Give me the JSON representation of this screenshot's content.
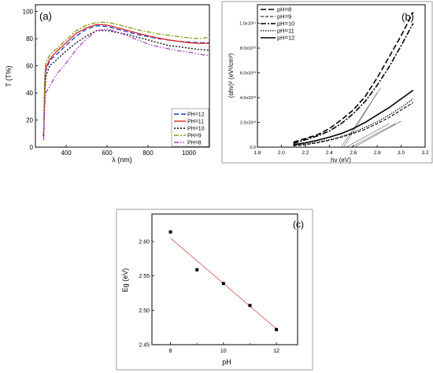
{
  "chart_data": [
    {
      "panel_label": "(a)",
      "type": "line",
      "xlabel": "λ (nm)",
      "ylabel": "T (T%)",
      "xlim": [
        250,
        1100
      ],
      "ylim": [
        0,
        105
      ],
      "x_ticks": [
        "400",
        "600",
        "800",
        "1000"
      ],
      "y_ticks": [
        "0",
        "20",
        "40",
        "60",
        "80",
        "100"
      ],
      "legend_position": "bottom-right",
      "series": [
        {
          "name": "PH=12",
          "color": "#1f3fd6",
          "dash": "6,3",
          "x": [
            290,
            295,
            300,
            320,
            350,
            400,
            450,
            500,
            550,
            600,
            650,
            700,
            750,
            800,
            850,
            900,
            950,
            1000,
            1050,
            1100
          ],
          "y": [
            8,
            40,
            56,
            64,
            68,
            75,
            82,
            87,
            89.5,
            89,
            87,
            85,
            83,
            81.5,
            80,
            79,
            78,
            77.5,
            77,
            77
          ]
        },
        {
          "name": "PH=11",
          "color": "#e0201f",
          "dash": "",
          "x": [
            290,
            295,
            300,
            320,
            350,
            400,
            450,
            500,
            550,
            600,
            650,
            700,
            750,
            800,
            850,
            900,
            950,
            1000,
            1050,
            1100
          ],
          "y": [
            8,
            42,
            58,
            65,
            70,
            77,
            84,
            88,
            90.5,
            90,
            88,
            86,
            84,
            82,
            80.5,
            79,
            78,
            77,
            76.5,
            76.5
          ]
        },
        {
          "name": "PH=10",
          "color": "#000000",
          "dash": "2,2",
          "x": [
            290,
            295,
            300,
            320,
            350,
            400,
            450,
            500,
            550,
            600,
            650,
            700,
            750,
            800,
            850,
            900,
            950,
            1000,
            1050,
            1100
          ],
          "y": [
            8,
            38,
            52,
            60,
            64,
            71,
            77,
            82,
            86,
            86,
            84.5,
            83,
            81,
            79,
            77,
            75,
            74,
            73,
            72,
            71.5
          ]
        },
        {
          "name": "PH=9",
          "color": "#8a9a10",
          "dash": "6,2,2,2",
          "x": [
            290,
            295,
            300,
            320,
            350,
            400,
            450,
            500,
            550,
            600,
            650,
            700,
            750,
            800,
            850,
            900,
            950,
            1000,
            1050,
            1100
          ],
          "y": [
            10,
            50,
            62,
            68,
            72,
            79,
            86,
            90,
            92,
            92,
            90.5,
            88.5,
            86.5,
            85,
            83.5,
            82.5,
            81.5,
            80.5,
            80,
            81
          ]
        },
        {
          "name": "PH=8",
          "color": "#b040d0",
          "dash": "6,2,1.5,2,1.5,2",
          "x": [
            290,
            295,
            300,
            320,
            350,
            400,
            450,
            500,
            550,
            600,
            650,
            700,
            750,
            800,
            850,
            900,
            950,
            1000,
            1050,
            1100
          ],
          "y": [
            5,
            28,
            40,
            45,
            53,
            62,
            72,
            80,
            86,
            87,
            85,
            82,
            79,
            76,
            74,
            72.5,
            71,
            70,
            68.5,
            67.5
          ]
        }
      ]
    },
    {
      "panel_label": "(b)",
      "type": "line",
      "xlabel": "hν (eV)",
      "ylabel": "(αhν)² (eV²/cm²)",
      "xlim": [
        1.8,
        3.2
      ],
      "ylim": [
        0,
        115000000000000.0
      ],
      "x_ticks": [
        "1.8",
        "2.0",
        "2.2",
        "2.4",
        "2.6",
        "2.8",
        "3.0",
        "3.2"
      ],
      "y_ticks": [
        "0.0",
        "2.0x10¹³",
        "4.0x10¹³",
        "6.0x10¹³",
        "8.0x10¹³",
        "1.0x10¹⁴"
      ],
      "legend_position": "top-left",
      "series": [
        {
          "name": "pH=8",
          "color": "#000000",
          "dash": "7,3",
          "width": 1.6,
          "x": [
            2.1,
            2.2,
            2.3,
            2.4,
            2.5,
            2.6,
            2.7,
            2.8,
            2.9,
            3.0,
            3.1
          ],
          "y": [
            4000000000000.0,
            7000000000000.0,
            10000000000000.0,
            15000000000000.0,
            22000000000000.0,
            30000000000000.0,
            41000000000000.0,
            56000000000000.0,
            73000000000000.0,
            90000000000000.0,
            109000000000000.0
          ]
        },
        {
          "name": "pH=9",
          "color": "#000000",
          "dash": "4,2",
          "width": 1.1,
          "x": [
            2.1,
            2.2,
            2.3,
            2.4,
            2.5,
            2.6,
            2.7,
            2.8,
            2.9,
            3.0,
            3.1
          ],
          "y": [
            1000000000000.0,
            2000000000000.0,
            3500000000000.0,
            5500000000000.0,
            8000000000000.0,
            11000000000000.0,
            14500000000000.0,
            19000000000000.0,
            24000000000000.0,
            30000000000000.0,
            36000000000000.0
          ]
        },
        {
          "name": "pH=10",
          "color": "#000000",
          "dash": "7,2,2,2",
          "width": 1.6,
          "x": [
            2.1,
            2.2,
            2.3,
            2.4,
            2.5,
            2.6,
            2.7,
            2.8,
            2.9,
            3.0,
            3.1
          ],
          "y": [
            3000000000000.0,
            6000000000000.0,
            9000000000000.0,
            13000000000000.0,
            19000000000000.0,
            27000000000000.0,
            37000000000000.0,
            50000000000000.0,
            65000000000000.0,
            82000000000000.0,
            100000000000000.0
          ]
        },
        {
          "name": "pH=11",
          "color": "#000000",
          "dash": "1.5,1.5",
          "width": 1.2,
          "x": [
            2.1,
            2.2,
            2.3,
            2.4,
            2.5,
            2.6,
            2.7,
            2.8,
            2.9,
            3.0,
            3.1
          ],
          "y": [
            1500000000000.0,
            2500000000000.0,
            4000000000000.0,
            6000000000000.0,
            8500000000000.0,
            12000000000000.0,
            16000000000000.0,
            20500000000000.0,
            26000000000000.0,
            32000000000000.0,
            39000000000000.0
          ]
        },
        {
          "name": "pH=12",
          "color": "#000000",
          "dash": "",
          "width": 1.6,
          "x": [
            2.1,
            2.2,
            2.3,
            2.4,
            2.5,
            2.6,
            2.7,
            2.8,
            2.9,
            3.0,
            3.1
          ],
          "y": [
            2000000000000.0,
            3500000000000.0,
            5500000000000.0,
            8000000000000.0,
            11000000000000.0,
            15000000000000.0,
            20000000000000.0,
            26000000000000.0,
            32000000000000.0,
            39000000000000.0,
            46000000000000.0
          ]
        }
      ],
      "tangent_lines": [
        {
          "x": [
            2.5,
            2.83
          ],
          "y": [
            0,
            48000000000000.0
          ]
        },
        {
          "x": [
            2.52,
            2.8
          ],
          "y": [
            0,
            44000000000000.0
          ]
        },
        {
          "x": [
            2.54,
            2.9
          ],
          "y": [
            0,
            19000000000000.0
          ]
        },
        {
          "x": [
            2.58,
            2.95
          ],
          "y": [
            0,
            19000000000000.0
          ]
        },
        {
          "x": [
            2.61,
            3.0
          ],
          "y": [
            0,
            21000000000000.0
          ]
        }
      ]
    },
    {
      "panel_label": "(c)",
      "type": "scatter",
      "xlabel": "pH",
      "ylabel": "Eg (eV)",
      "xlim": [
        7.3,
        12.8
      ],
      "ylim": [
        2.45,
        2.64
      ],
      "x_ticks": [
        8,
        10,
        12
      ],
      "y_ticks": [
        "2.45",
        "2.50",
        "2.55",
        "2.60"
      ],
      "x": [
        8,
        9,
        10,
        11,
        12
      ],
      "y": [
        2.614,
        2.559,
        2.539,
        2.507,
        2.472
      ],
      "fit_line": {
        "x": [
          8,
          12
        ],
        "y": [
          2.605,
          2.473
        ],
        "color": "#e05555"
      }
    }
  ]
}
